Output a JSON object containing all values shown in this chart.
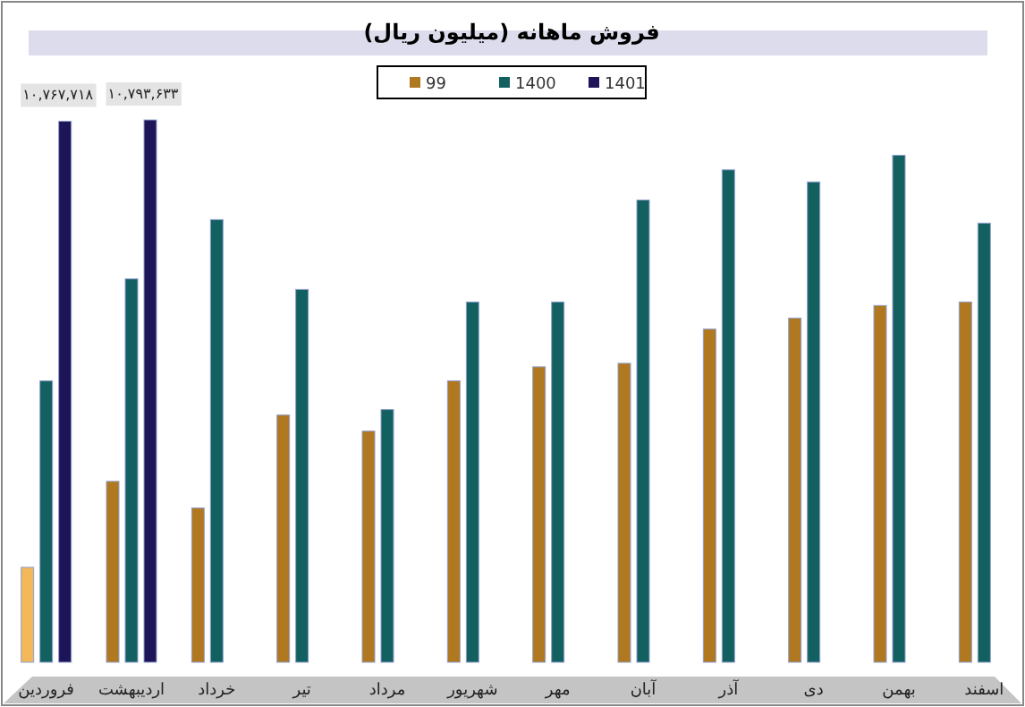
{
  "chart_data": {
    "type": "bar",
    "title": "فروش ماهانه (میلیون ریال)",
    "categories": [
      "فروردین",
      "اردیبهشت",
      "خرداد",
      "تیر",
      "مرداد",
      "شهریور",
      "مهر",
      "آبان",
      "آذر",
      "دی",
      "بهمن",
      "اسفند"
    ],
    "series": [
      {
        "name": "99",
        "color": "#b07820",
        "colors": [
          "#f2b85a",
          "#b07820",
          "#b07820",
          "#b07820",
          "#b07820",
          "#b07820",
          "#b07820",
          "#b07820",
          "#b07820",
          "#b07820",
          "#b07820",
          "#b07820"
        ],
        "values": [
          1890000,
          3600000,
          3070000,
          4920000,
          4600000,
          5600000,
          5880000,
          5950000,
          6630000,
          6850000,
          7100000,
          7170000
        ]
      },
      {
        "name": "1400",
        "color": "#136060",
        "values": [
          5600000,
          7630000,
          8810000,
          7420000,
          5030000,
          7170000,
          7170000,
          9200000,
          9800000,
          9560000,
          10090000,
          8740000
        ]
      },
      {
        "name": "1401",
        "color": "#1e1458",
        "values": [
          10767718,
          10793633,
          null,
          null,
          null,
          null,
          null,
          null,
          null,
          null,
          null,
          null
        ],
        "value_labels": [
          "۱۰,۷۶۷,۷۱۸",
          "۱۰,۷۹۳,۶۳۳",
          null,
          null,
          null,
          null,
          null,
          null,
          null,
          null,
          null,
          null
        ]
      }
    ],
    "legend": "top",
    "tick_labels": "x"
  }
}
